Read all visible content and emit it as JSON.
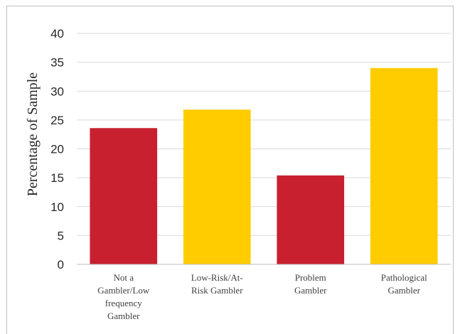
{
  "chart_data": {
    "type": "bar",
    "categories": [
      [
        "Not a",
        "Gambler/Low",
        "frequency",
        "Gambler"
      ],
      [
        "Low-Risk/At-",
        "Risk Gambler"
      ],
      [
        "Problem",
        "Gambler"
      ],
      [
        "Pathological",
        "Gambler"
      ]
    ],
    "values": [
      23.6,
      26.8,
      15.4,
      34.0
    ],
    "bar_colors": [
      "#c8202f",
      "#ffcc00",
      "#c8202f",
      "#ffcc00"
    ],
    "title": "",
    "xlabel": "",
    "ylabel": "Percentage of Sample",
    "ylim": [
      0,
      40
    ],
    "yticks": [
      0,
      5,
      10,
      15,
      20,
      25,
      30,
      35,
      40
    ],
    "grid": true,
    "legend": "none",
    "gridline_color": "#d9d9d9",
    "axis_color": "#bfbfbf"
  }
}
